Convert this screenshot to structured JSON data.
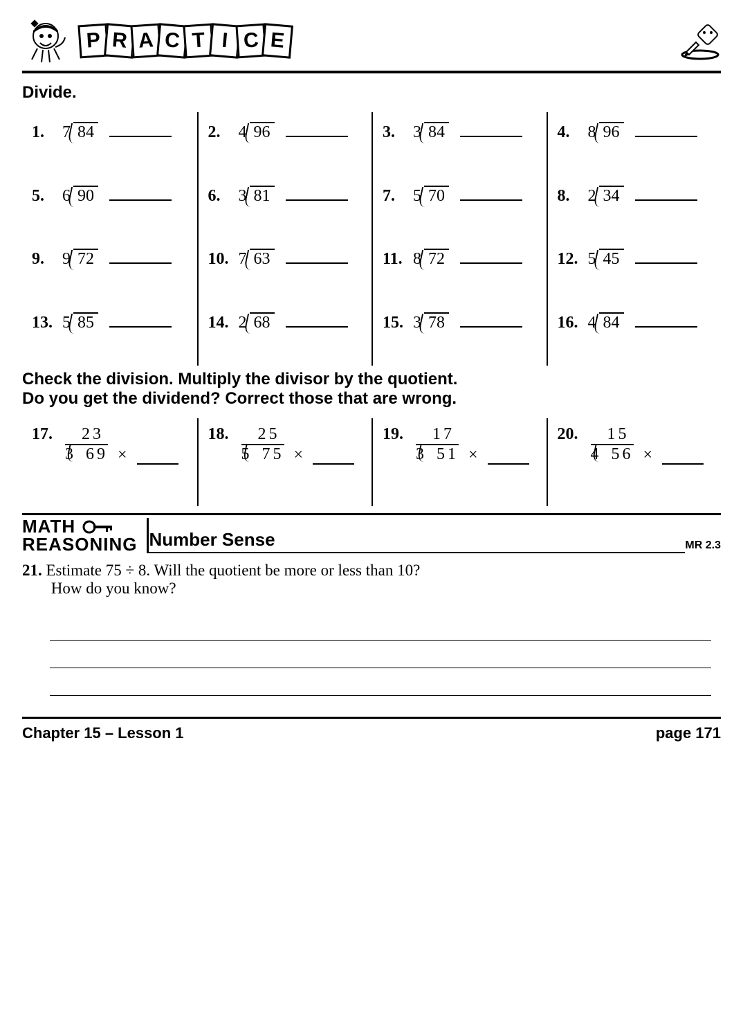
{
  "header": {
    "tiles": [
      "P",
      "R",
      "A",
      "C",
      "T",
      "I",
      "C",
      "E"
    ]
  },
  "instruction1": "Divide.",
  "problems": [
    {
      "n": "1.",
      "divisor": "7",
      "dividend": "84"
    },
    {
      "n": "2.",
      "divisor": "4",
      "dividend": "96"
    },
    {
      "n": "3.",
      "divisor": "3",
      "dividend": "84"
    },
    {
      "n": "4.",
      "divisor": "8",
      "dividend": "96"
    },
    {
      "n": "5.",
      "divisor": "6",
      "dividend": "90"
    },
    {
      "n": "6.",
      "divisor": "3",
      "dividend": "81"
    },
    {
      "n": "7.",
      "divisor": "5",
      "dividend": "70"
    },
    {
      "n": "8.",
      "divisor": "2",
      "dividend": "34"
    },
    {
      "n": "9.",
      "divisor": "9",
      "dividend": "72"
    },
    {
      "n": "10.",
      "divisor": "7",
      "dividend": "63"
    },
    {
      "n": "11.",
      "divisor": "8",
      "dividend": "72"
    },
    {
      "n": "12.",
      "divisor": "5",
      "dividend": "45"
    },
    {
      "n": "13.",
      "divisor": "5",
      "dividend": "85"
    },
    {
      "n": "14.",
      "divisor": "2",
      "dividend": "68"
    },
    {
      "n": "15.",
      "divisor": "3",
      "dividend": "78"
    },
    {
      "n": "16.",
      "divisor": "4",
      "dividend": "84"
    }
  ],
  "instruction2a": "Check the division. Multiply the divisor by the quotient.",
  "instruction2b": "Do you get the dividend? Correct those that are wrong.",
  "check_problems": [
    {
      "n": "17.",
      "divisor": "3",
      "dividend": "69",
      "quotient": "23"
    },
    {
      "n": "18.",
      "divisor": "5",
      "dividend": "75",
      "quotient": "25"
    },
    {
      "n": "19.",
      "divisor": "3",
      "dividend": "51",
      "quotient": "17"
    },
    {
      "n": "20.",
      "divisor": "4",
      "dividend": "56",
      "quotient": "15"
    }
  ],
  "times_symbol": "×",
  "mr": {
    "logo1": "MATH",
    "logo2": "REASONING",
    "title": "Number Sense",
    "code": "MR 2.3"
  },
  "q21": {
    "n": "21.",
    "line1": "Estimate 75 ÷ 8. Will the quotient be more or less than 10?",
    "line2": "How do you know?"
  },
  "footer": {
    "left": "Chapter 15 – Lesson 1",
    "right": "page 171"
  },
  "colors": {
    "text": "#000000",
    "bg": "#ffffff",
    "rule": "#000000"
  }
}
